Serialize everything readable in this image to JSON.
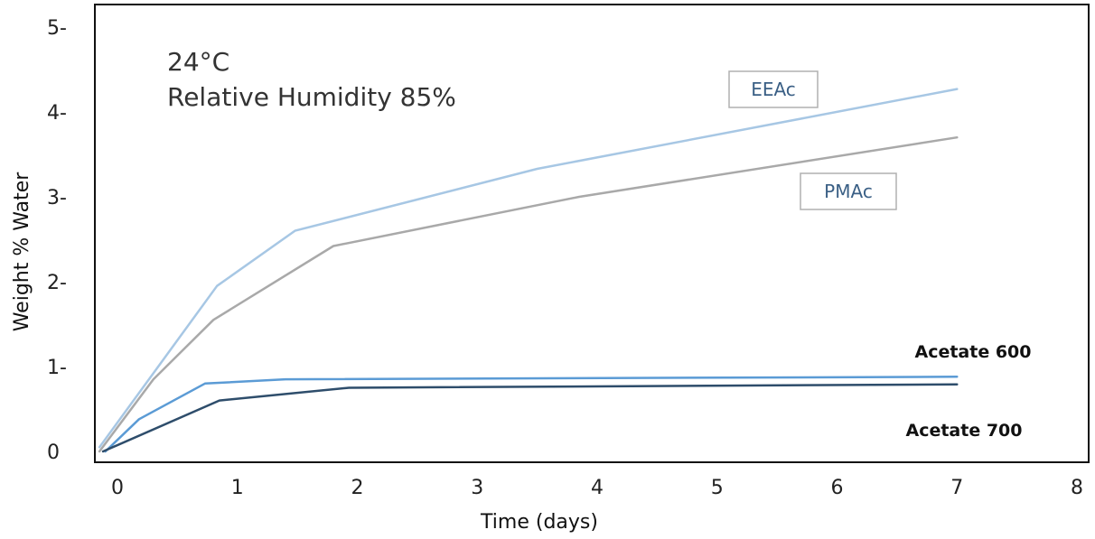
{
  "chart_data": {
    "type": "line",
    "condition_temperature": "24°C",
    "condition_humidity": "Relative Humidity 85%",
    "xlabel": "Time (days)",
    "ylabel": "Weight % Water",
    "x_ticks": [
      "0",
      "1",
      "2",
      "3",
      "4",
      "5",
      "6",
      "7",
      "8"
    ],
    "y_ticks": [
      "0",
      "1-",
      "2-",
      "3-",
      "4-",
      "5-"
    ],
    "xlim": [
      -0.2,
      8.2
    ],
    "ylim": [
      0,
      5
    ],
    "grid": false,
    "series": [
      {
        "name": "EEAc",
        "color": "#a7c7e4",
        "label_style": "boxed",
        "x": [
          -0.15,
          0.83,
          1.48,
          3.5,
          7.0
        ],
        "y": [
          0.05,
          1.95,
          2.6,
          3.33,
          4.27
        ]
      },
      {
        "name": "PMAc",
        "color": "#a9a9a9",
        "label_style": "boxed",
        "x": [
          -0.15,
          0.3,
          0.8,
          1.8,
          3.85,
          7.0
        ],
        "y": [
          0.0,
          0.85,
          1.55,
          2.42,
          3.0,
          3.7
        ]
      },
      {
        "name": "Acetate 600",
        "color": "#5b9bd5",
        "label_style": "plain",
        "x": [
          -0.1,
          0.18,
          0.73,
          1.4,
          7.0
        ],
        "y": [
          0.0,
          0.38,
          0.8,
          0.85,
          0.88
        ]
      },
      {
        "name": "Acetate 700",
        "color": "#2e4d6b",
        "label_style": "plain",
        "x": [
          -0.12,
          0.85,
          1.93,
          7.0
        ],
        "y": [
          0.0,
          0.6,
          0.75,
          0.79
        ]
      }
    ]
  }
}
